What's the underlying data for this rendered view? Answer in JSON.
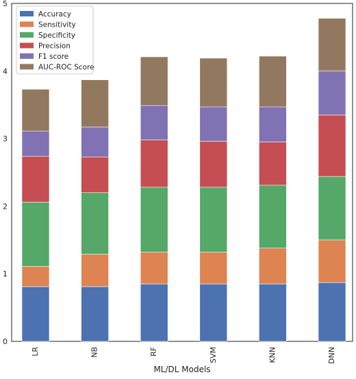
{
  "chart_data": {
    "type": "bar",
    "stacked": true,
    "categories": [
      "LR",
      "NB",
      "RF",
      "SVM",
      "KNN",
      "DNN"
    ],
    "series": [
      {
        "name": "Accuracy",
        "color": "#4c72b0",
        "values": [
          0.81,
          0.81,
          0.85,
          0.85,
          0.85,
          0.87
        ]
      },
      {
        "name": "Sensitivity",
        "color": "#dd8452",
        "values": [
          0.3,
          0.48,
          0.47,
          0.47,
          0.53,
          0.63
        ]
      },
      {
        "name": "Specificity",
        "color": "#55a868",
        "values": [
          0.95,
          0.91,
          0.96,
          0.96,
          0.93,
          0.94
        ]
      },
      {
        "name": "Precision",
        "color": "#c44e52",
        "values": [
          0.68,
          0.53,
          0.7,
          0.68,
          0.64,
          0.91
        ]
      },
      {
        "name": "F1 score",
        "color": "#8172b3",
        "values": [
          0.37,
          0.44,
          0.51,
          0.51,
          0.52,
          0.65
        ]
      },
      {
        "name": "AUC-ROC Score",
        "color": "#937860",
        "values": [
          0.62,
          0.7,
          0.72,
          0.72,
          0.75,
          0.78
        ]
      }
    ],
    "title": "",
    "xlabel": "ML/DL Models",
    "ylabel": "",
    "ylim": [
      0,
      5
    ],
    "yticks": [
      0,
      1,
      2,
      3,
      4,
      5
    ],
    "grid": false,
    "legend_position": "top-left",
    "spine_color": "#222222"
  }
}
